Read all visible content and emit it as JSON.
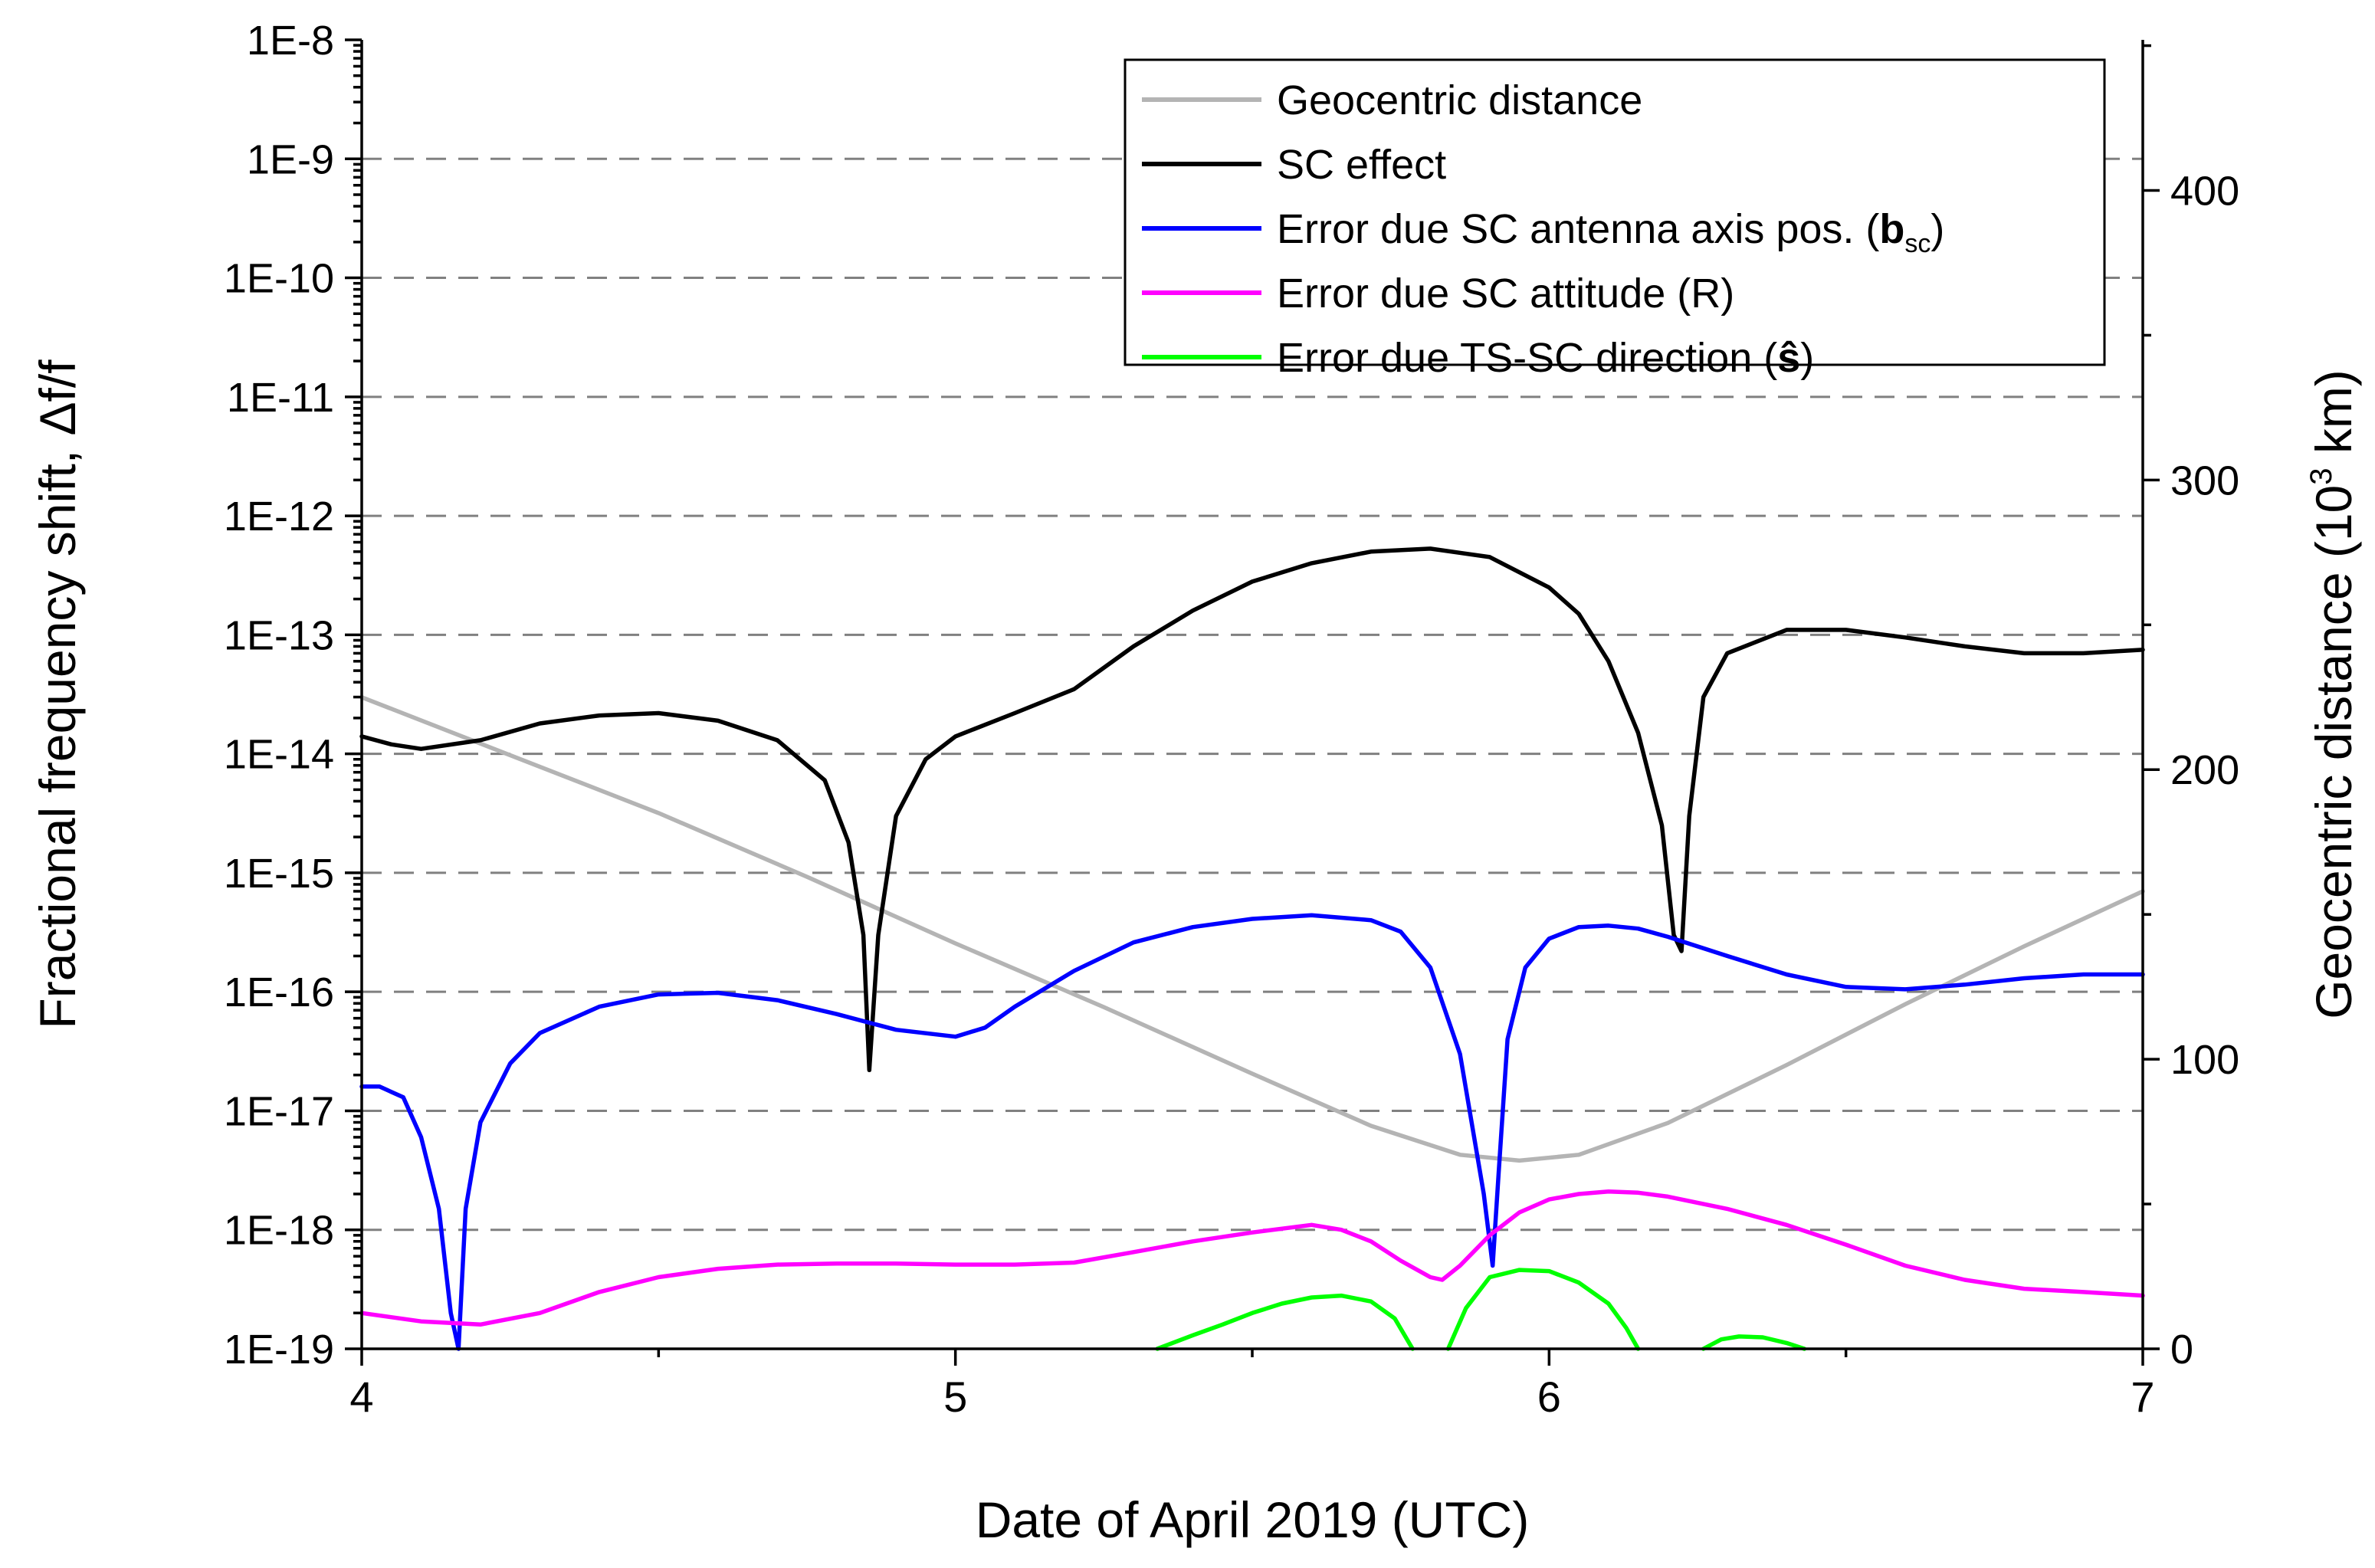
{
  "chart_data": {
    "type": "line",
    "xlabel": "Date of April 2019 (UTC)",
    "ylabel_left": "Fractional frequency shift, Δf/f",
    "ylabel_right_parts": [
      "Geocentric distance (10",
      "3",
      " km)"
    ],
    "xlim": [
      4,
      7
    ],
    "xticks": [
      4,
      5,
      6,
      7
    ],
    "xtick_labels": [
      "4",
      "5",
      "6",
      "7"
    ],
    "y_left": {
      "scale": "log",
      "lim": [
        1e-19,
        1e-08
      ],
      "ticks": [
        1e-19,
        1e-18,
        1e-17,
        1e-16,
        1e-15,
        1e-14,
        1e-13,
        1e-12,
        1e-11,
        1e-10,
        1e-09,
        1e-08
      ],
      "tick_labels": [
        "1E-19",
        "1E-18",
        "1E-17",
        "1E-16",
        "1E-15",
        "1E-14",
        "1E-13",
        "1E-12",
        "1E-11",
        "1E-10",
        "1E-9",
        "1E-8"
      ]
    },
    "y_right": {
      "scale": "linear",
      "lim": [
        0,
        452
      ],
      "ticks": [
        0,
        100,
        200,
        300,
        400
      ],
      "tick_labels": [
        "0",
        "100",
        "200",
        "300",
        "400"
      ]
    },
    "grid": "horizontal dashed at major left ticks",
    "legend_position": "top-right",
    "series": [
      {
        "name": "Geocentric distance",
        "axis": "right",
        "color": "#b4b4b4",
        "x": [
          4.0,
          4.25,
          4.5,
          4.75,
          5.0,
          5.25,
          5.5,
          5.7,
          5.85,
          5.95,
          6.05,
          6.2,
          6.4,
          6.6,
          6.8,
          7.0
        ],
        "y": [
          225,
          205,
          185,
          163,
          140,
          118,
          95,
          77,
          67,
          65,
          67,
          78,
          98,
          119,
          139,
          158
        ]
      },
      {
        "name": "SC effect",
        "axis": "left",
        "color": "#000000",
        "x": [
          4.0,
          4.05,
          4.1,
          4.2,
          4.3,
          4.4,
          4.5,
          4.6,
          4.7,
          4.78,
          4.82,
          4.845,
          4.855,
          4.87,
          4.9,
          4.95,
          5.0,
          5.1,
          5.2,
          5.3,
          5.4,
          5.5,
          5.6,
          5.7,
          5.8,
          5.9,
          6.0,
          6.05,
          6.1,
          6.15,
          6.19,
          6.21,
          6.223,
          6.236,
          6.26,
          6.3,
          6.4,
          6.5,
          6.6,
          6.7,
          6.8,
          6.9,
          7.0
        ],
        "y": [
          1.4e-14,
          1.2e-14,
          1.1e-14,
          1.3e-14,
          1.8e-14,
          2.1e-14,
          2.2e-14,
          1.9e-14,
          1.3e-14,
          6e-15,
          1.8e-15,
          3e-16,
          2.2e-17,
          3e-16,
          3e-15,
          9e-15,
          1.4e-14,
          2.2e-14,
          3.5e-14,
          8e-14,
          1.6e-13,
          2.8e-13,
          4e-13,
          5e-13,
          5.3e-13,
          4.5e-13,
          2.5e-13,
          1.5e-13,
          6e-14,
          1.5e-14,
          2.5e-15,
          3e-16,
          2.2e-16,
          3e-15,
          3e-14,
          7e-14,
          1.1e-13,
          1.1e-13,
          9.5e-14,
          8e-14,
          7e-14,
          7e-14,
          7.5e-14
        ]
      },
      {
        "name": "Error due SC antenna axis pos. (b_sc)",
        "axis": "left",
        "color": "#0000ff",
        "x": [
          4.0,
          4.03,
          4.07,
          4.1,
          4.13,
          4.15,
          4.163,
          4.175,
          4.2,
          4.25,
          4.3,
          4.4,
          4.5,
          4.6,
          4.7,
          4.8,
          4.9,
          5.0,
          5.05,
          5.1,
          5.2,
          5.3,
          5.4,
          5.5,
          5.6,
          5.7,
          5.75,
          5.8,
          5.85,
          5.89,
          5.905,
          5.915,
          5.93,
          5.96,
          6.0,
          6.05,
          6.1,
          6.15,
          6.2,
          6.3,
          6.4,
          6.5,
          6.6,
          6.7,
          6.8,
          6.9,
          7.0
        ],
        "y": [
          1.6e-17,
          1.6e-17,
          1.3e-17,
          6e-18,
          1.5e-18,
          2e-19,
          1e-19,
          1.5e-18,
          8e-18,
          2.5e-17,
          4.5e-17,
          7.5e-17,
          9.5e-17,
          9.8e-17,
          8.5e-17,
          6.5e-17,
          4.8e-17,
          4.2e-17,
          5e-17,
          7.5e-17,
          1.5e-16,
          2.6e-16,
          3.5e-16,
          4.1e-16,
          4.4e-16,
          4e-16,
          3.2e-16,
          1.6e-16,
          3e-17,
          2e-18,
          5e-19,
          3e-18,
          4e-17,
          1.6e-16,
          2.8e-16,
          3.5e-16,
          3.6e-16,
          3.4e-16,
          2.9e-16,
          2e-16,
          1.4e-16,
          1.1e-16,
          1.05e-16,
          1.15e-16,
          1.3e-16,
          1.4e-16,
          1.4e-16
        ]
      },
      {
        "name": "Error due SC attitude (R)",
        "axis": "left",
        "color": "#ff00ff",
        "x": [
          4.0,
          4.1,
          4.2,
          4.3,
          4.4,
          4.5,
          4.6,
          4.7,
          4.8,
          4.9,
          5.0,
          5.1,
          5.2,
          5.3,
          5.4,
          5.5,
          5.6,
          5.65,
          5.7,
          5.75,
          5.8,
          5.82,
          5.85,
          5.9,
          5.95,
          6.0,
          6.05,
          6.1,
          6.15,
          6.2,
          6.3,
          6.4,
          6.5,
          6.6,
          6.7,
          6.8,
          6.9,
          7.0
        ],
        "y": [
          2e-19,
          1.7e-19,
          1.6e-19,
          2e-19,
          3e-19,
          4e-19,
          4.7e-19,
          5.1e-19,
          5.2e-19,
          5.2e-19,
          5.1e-19,
          5.1e-19,
          5.3e-19,
          6.5e-19,
          8e-19,
          9.5e-19,
          1.1e-18,
          1e-18,
          8e-19,
          5.5e-19,
          4e-19,
          3.8e-19,
          5e-19,
          9e-19,
          1.4e-18,
          1.8e-18,
          2e-18,
          2.1e-18,
          2.05e-18,
          1.9e-18,
          1.5e-18,
          1.1e-18,
          7.5e-19,
          5e-19,
          3.8e-19,
          3.2e-19,
          3e-19,
          2.8e-19
        ]
      },
      {
        "name": "Error due TS-SC direction (ŝ)",
        "axis": "left",
        "color": "#00ff00",
        "segments": [
          {
            "x": [
              5.34,
              5.4,
              5.45,
              5.5,
              5.55,
              5.6,
              5.65,
              5.7,
              5.74,
              5.77
            ],
            "y": [
              1e-19,
              1.3e-19,
              1.6e-19,
              2e-19,
              2.4e-19,
              2.7e-19,
              2.8e-19,
              2.5e-19,
              1.8e-19,
              1e-19
            ]
          },
          {
            "x": [
              5.83,
              5.86,
              5.9,
              5.95,
              6.0,
              6.05,
              6.1,
              6.13,
              6.15
            ],
            "y": [
              1e-19,
              2.2e-19,
              4e-19,
              4.6e-19,
              4.5e-19,
              3.6e-19,
              2.4e-19,
              1.5e-19,
              1e-19
            ]
          },
          {
            "x": [
              6.26,
              6.29,
              6.32,
              6.36,
              6.4,
              6.43
            ],
            "y": [
              1e-19,
              1.2e-19,
              1.27e-19,
              1.25e-19,
              1.12e-19,
              1e-19
            ]
          }
        ]
      }
    ],
    "legend": [
      {
        "parts": [
          {
            "t": "Geocentric distance",
            "s": "n"
          }
        ],
        "color": "#b4b4b4"
      },
      {
        "parts": [
          {
            "t": "SC effect",
            "s": "n"
          }
        ],
        "color": "#000000"
      },
      {
        "parts": [
          {
            "t": "Error due SC antenna axis pos. (",
            "s": "n"
          },
          {
            "t": "b",
            "s": "b"
          },
          {
            "t": "sc",
            "s": "sub"
          },
          {
            "t": ")",
            "s": "n"
          }
        ],
        "color": "#0000ff"
      },
      {
        "parts": [
          {
            "t": "Error due SC attitude (R)",
            "s": "n"
          }
        ],
        "color": "#ff00ff"
      },
      {
        "parts": [
          {
            "t": "Error due TS-SC direction (",
            "s": "n"
          },
          {
            "t": "ŝ",
            "s": "b"
          },
          {
            "t": ")",
            "s": "n"
          }
        ],
        "color": "#00ff00"
      }
    ]
  }
}
